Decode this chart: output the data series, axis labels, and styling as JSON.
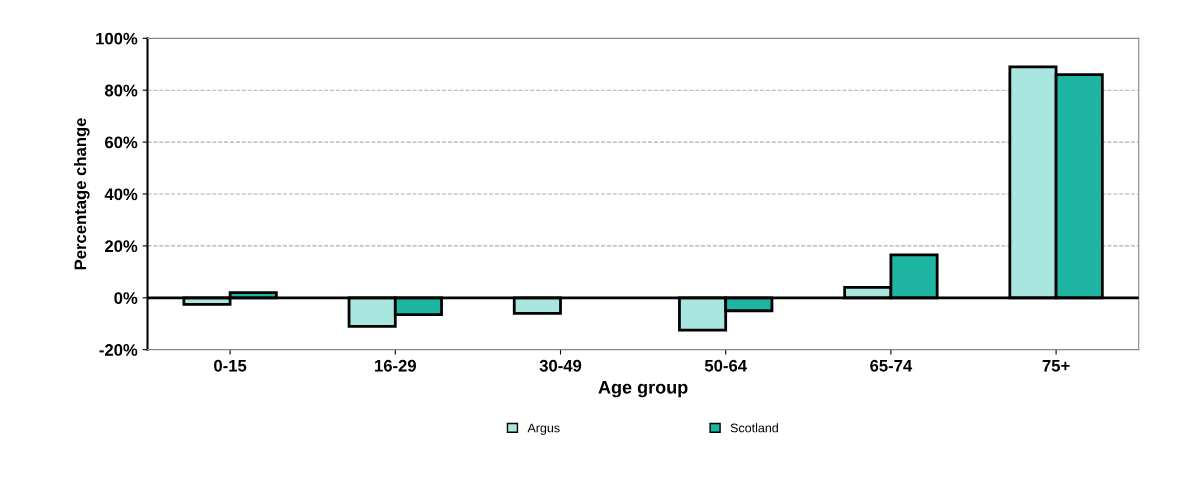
{
  "chart_data": {
    "type": "bar",
    "xlabel": "Age group",
    "ylabel": "Percentage change",
    "categories": [
      "0-15",
      "16-29",
      "30-49",
      "50-64",
      "65-74",
      "75+"
    ],
    "series": [
      {
        "name": "Argus",
        "color": "#a8e6df",
        "values": [
          -2.5,
          -11,
          -6,
          -12.5,
          4,
          89
        ]
      },
      {
        "name": "Scotland",
        "color": "#1fb5a3",
        "values": [
          2,
          -6.5,
          null,
          -5,
          16.5,
          86
        ]
      }
    ],
    "ylim": [
      -20,
      100
    ],
    "yticks": [
      {
        "value": -20,
        "label": "-20%"
      },
      {
        "value": 0,
        "label": "0%"
      },
      {
        "value": 20,
        "label": "20%"
      },
      {
        "value": 40,
        "label": "40%"
      },
      {
        "value": 60,
        "label": "60%"
      },
      {
        "value": 80,
        "label": "80%"
      },
      {
        "value": 100,
        "label": "100%"
      }
    ],
    "grid": "y",
    "legend": "bottom"
  }
}
